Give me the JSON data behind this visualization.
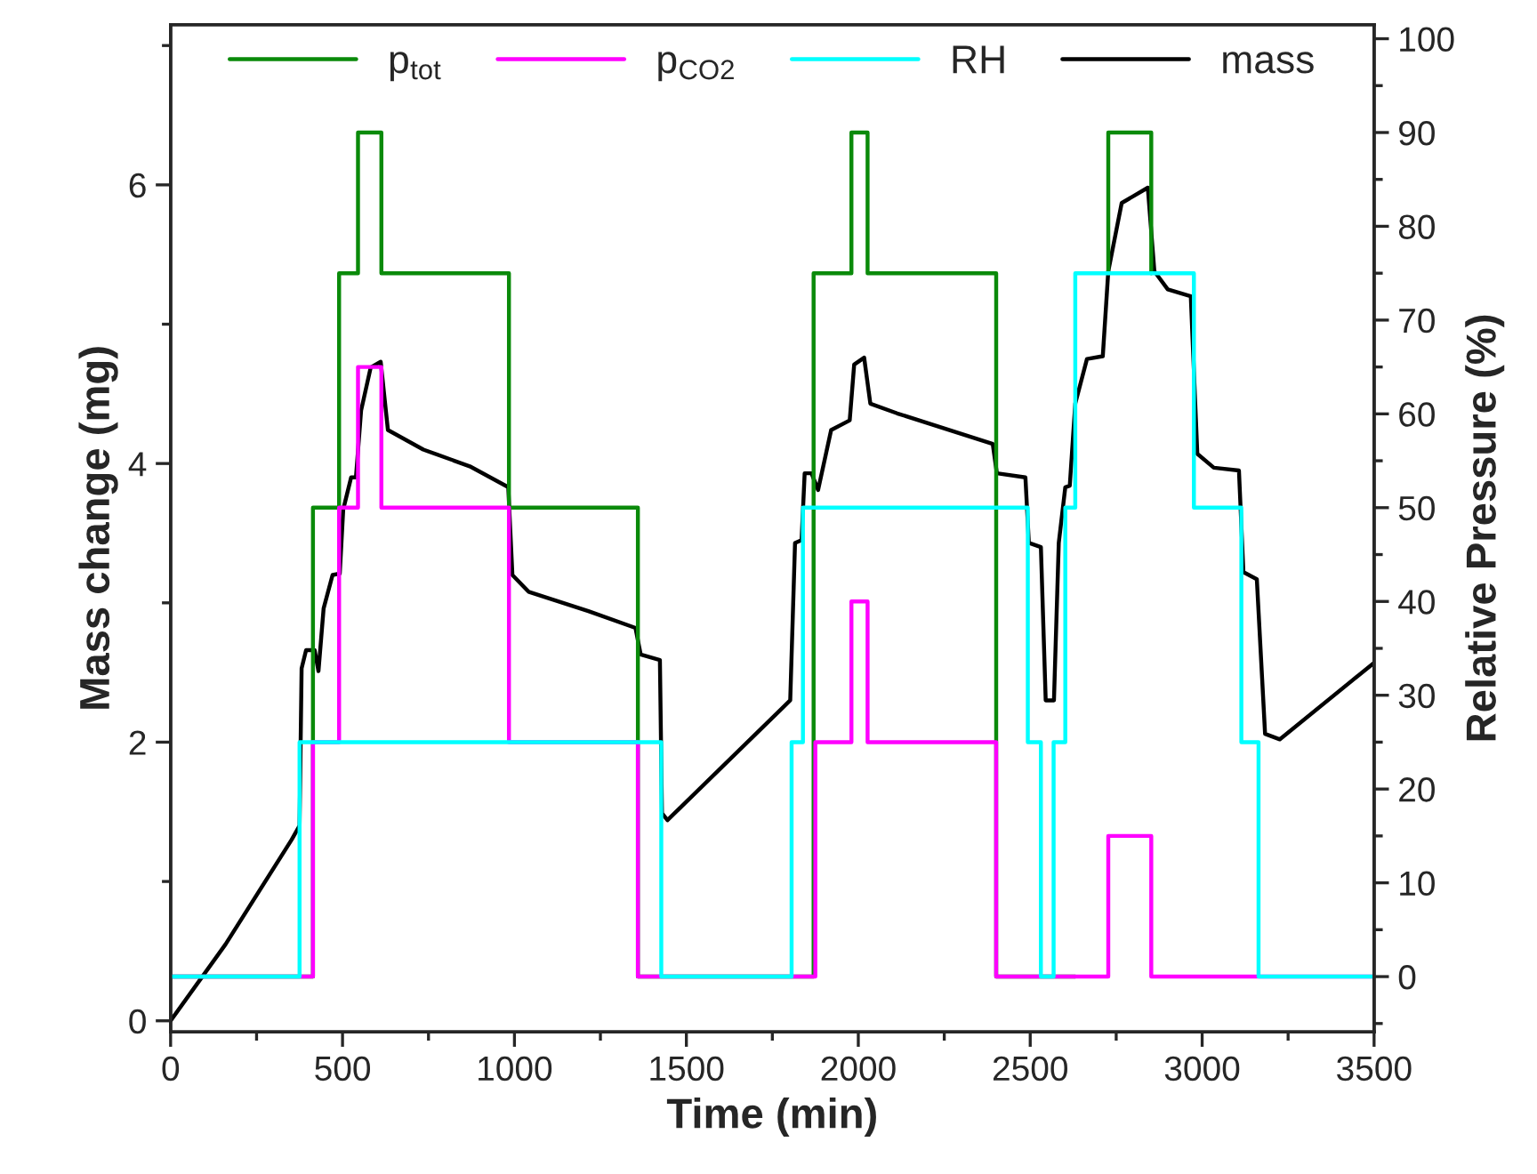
{
  "chart_data": {
    "type": "line",
    "xlabel": "Time (min)",
    "ylabel": "Mass change (mg)",
    "y2label": "Relative Pressure (%)",
    "xlim": [
      0,
      3500
    ],
    "xticks": [
      0,
      500,
      1000,
      1500,
      2000,
      2500,
      3000,
      3500
    ],
    "ylim": [
      -0.08,
      7.15
    ],
    "yticks": [
      0,
      2,
      4,
      6
    ],
    "y2lim": [
      -5.9,
      101.5
    ],
    "y2ticks": [
      0,
      10,
      20,
      30,
      40,
      50,
      60,
      70,
      80,
      90,
      100
    ],
    "legend": "top",
    "grid": false,
    "series": [
      {
        "name": "p$_{tot}$",
        "type": "step",
        "axis": "y2",
        "color": "#0a8a0a",
        "x": [
          0,
          414,
          490,
          545,
          613,
          984,
          1359,
          1870,
          1980,
          2027,
          2401,
          2631,
          2727,
          2727,
          2852
        ],
        "values": [
          0,
          50,
          75,
          90,
          75,
          50,
          0,
          75,
          90,
          75,
          0,
          null,
          75,
          90,
          75
        ]
      },
      {
        "name": "p$_{CO2}$",
        "type": "step",
        "axis": "y2",
        "color": "#ff00ff",
        "x": [
          0,
          414,
          490,
          545,
          613,
          984,
          1359,
          1875,
          1980,
          2027,
          2401,
          2727,
          2852,
          3500
        ],
        "values": [
          0,
          25,
          50,
          65,
          50,
          25,
          0,
          25,
          40,
          25,
          0,
          15,
          0,
          0
        ]
      },
      {
        "name": "RH",
        "type": "step",
        "axis": "y2",
        "color": "#00ffff",
        "x": [
          0,
          375,
          1427,
          1806,
          1839,
          2493,
          2531,
          2568,
          2602,
          2631,
          2976,
          3114,
          3164,
          3500
        ],
        "values": [
          0,
          25,
          0,
          25,
          50,
          25,
          0,
          25,
          50,
          75,
          50,
          25,
          0,
          0
        ]
      },
      {
        "name": "mass",
        "axis": "y",
        "color": "#000000",
        "x": [
          0,
          160,
          352,
          375,
          381,
          394,
          419,
          430,
          445,
          471,
          492,
          502,
          525,
          539,
          554,
          582,
          611,
          632,
          735,
          870,
          982,
          994,
          1041,
          1215,
          1352,
          1367,
          1423,
          1429,
          1445,
          1781,
          1802,
          1816,
          1835,
          1844,
          1864,
          1883,
          1921,
          1975,
          1988,
          2017,
          2035,
          2113,
          2391,
          2403,
          2486,
          2496,
          2531,
          2545,
          2569,
          2583,
          2602,
          2615,
          2631,
          2665,
          2711,
          2727,
          2766,
          2842,
          2861,
          2900,
          2967,
          2986,
          3034,
          3107,
          3120,
          3159,
          3183,
          3226,
          3500
        ],
        "values": [
          0,
          0.55,
          1.3,
          1.4,
          2.53,
          2.66,
          2.66,
          2.51,
          2.96,
          3.2,
          3.21,
          3.67,
          3.9,
          3.9,
          4.38,
          4.69,
          4.73,
          4.24,
          4.1,
          3.98,
          3.83,
          3.2,
          3.08,
          2.94,
          2.82,
          2.63,
          2.59,
          1.49,
          1.44,
          2.25,
          2.3,
          3.43,
          3.45,
          3.93,
          3.93,
          3.81,
          4.24,
          4.31,
          4.71,
          4.76,
          4.43,
          4.36,
          4.14,
          3.93,
          3.9,
          3.43,
          3.4,
          2.3,
          2.3,
          3.43,
          3.83,
          3.84,
          4.43,
          4.75,
          4.77,
          5.38,
          5.87,
          5.98,
          5.38,
          5.25,
          5.2,
          4.07,
          3.97,
          3.95,
          3.22,
          3.17,
          2.06,
          2.02,
          2.57
        ]
      }
    ]
  }
}
